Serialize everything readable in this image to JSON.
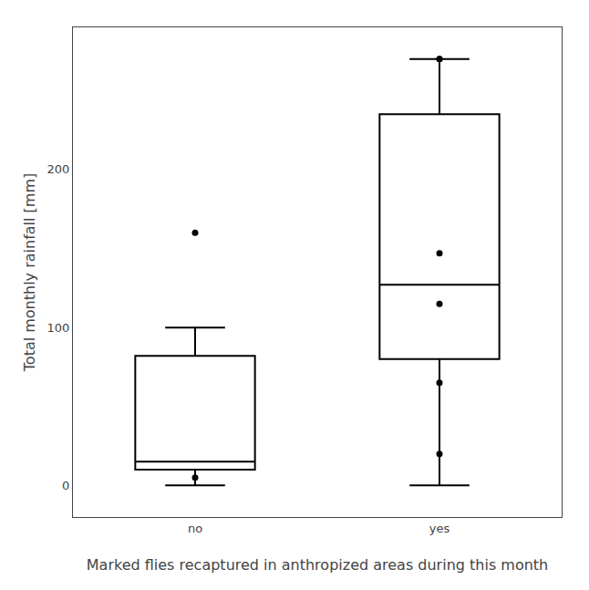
{
  "chart_data": {
    "type": "box",
    "xlabel": "Marked flies recaptured in anthropized areas during this month",
    "ylabel": "Total monthly rainfall [mm]",
    "categories": [
      "no",
      "yes"
    ],
    "boxes": [
      {
        "whisker_low": 0,
        "whisker_high": 100,
        "q1": 10,
        "median": 15,
        "q3": 82,
        "outliers": [
          160,
          5
        ]
      },
      {
        "whisker_low": 0,
        "whisker_high": 270,
        "q1": 80,
        "median": 127,
        "q3": 235,
        "outliers": [
          270,
          270,
          65,
          20,
          115,
          147
        ]
      }
    ],
    "color": "#000000",
    "ylim": [
      -20,
      290
    ],
    "yticks": [
      0,
      100,
      200
    ],
    "grid": false
  }
}
